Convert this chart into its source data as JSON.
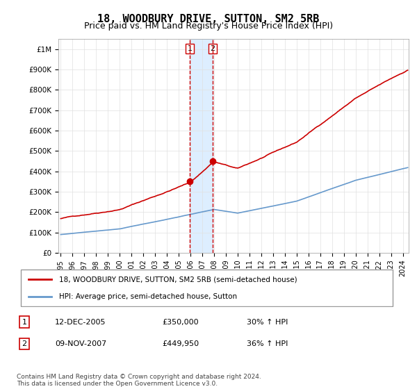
{
  "title": "18, WOODBURY DRIVE, SUTTON, SM2 5RB",
  "subtitle": "Price paid vs. HM Land Registry's House Price Index (HPI)",
  "legend_line1": "18, WOODBURY DRIVE, SUTTON, SM2 5RB (semi-detached house)",
  "legend_line2": "HPI: Average price, semi-detached house, Sutton",
  "footnote": "Contains HM Land Registry data © Crown copyright and database right 2024.\nThis data is licensed under the Open Government Licence v3.0.",
  "sale1_label": "1",
  "sale1_date": "12-DEC-2005",
  "sale1_price": "£350,000",
  "sale1_hpi": "30% ↑ HPI",
  "sale1_year": 2005.95,
  "sale1_value": 350000,
  "sale2_label": "2",
  "sale2_date": "09-NOV-2007",
  "sale2_price": "£449,950",
  "sale2_hpi": "36% ↑ HPI",
  "sale2_year": 2007.87,
  "sale2_value": 449950,
  "red_color": "#cc0000",
  "blue_color": "#6699cc",
  "shaded_color": "#ddeeff",
  "marker_color": "#cc0000",
  "vline_color": "#cc0000",
  "ylim_max": 1050000,
  "ylim_min": 0,
  "xlabel_start_year": 1995,
  "xlabel_end_year": 2024,
  "background_color": "#ffffff",
  "grid_color": "#e0e0e0"
}
